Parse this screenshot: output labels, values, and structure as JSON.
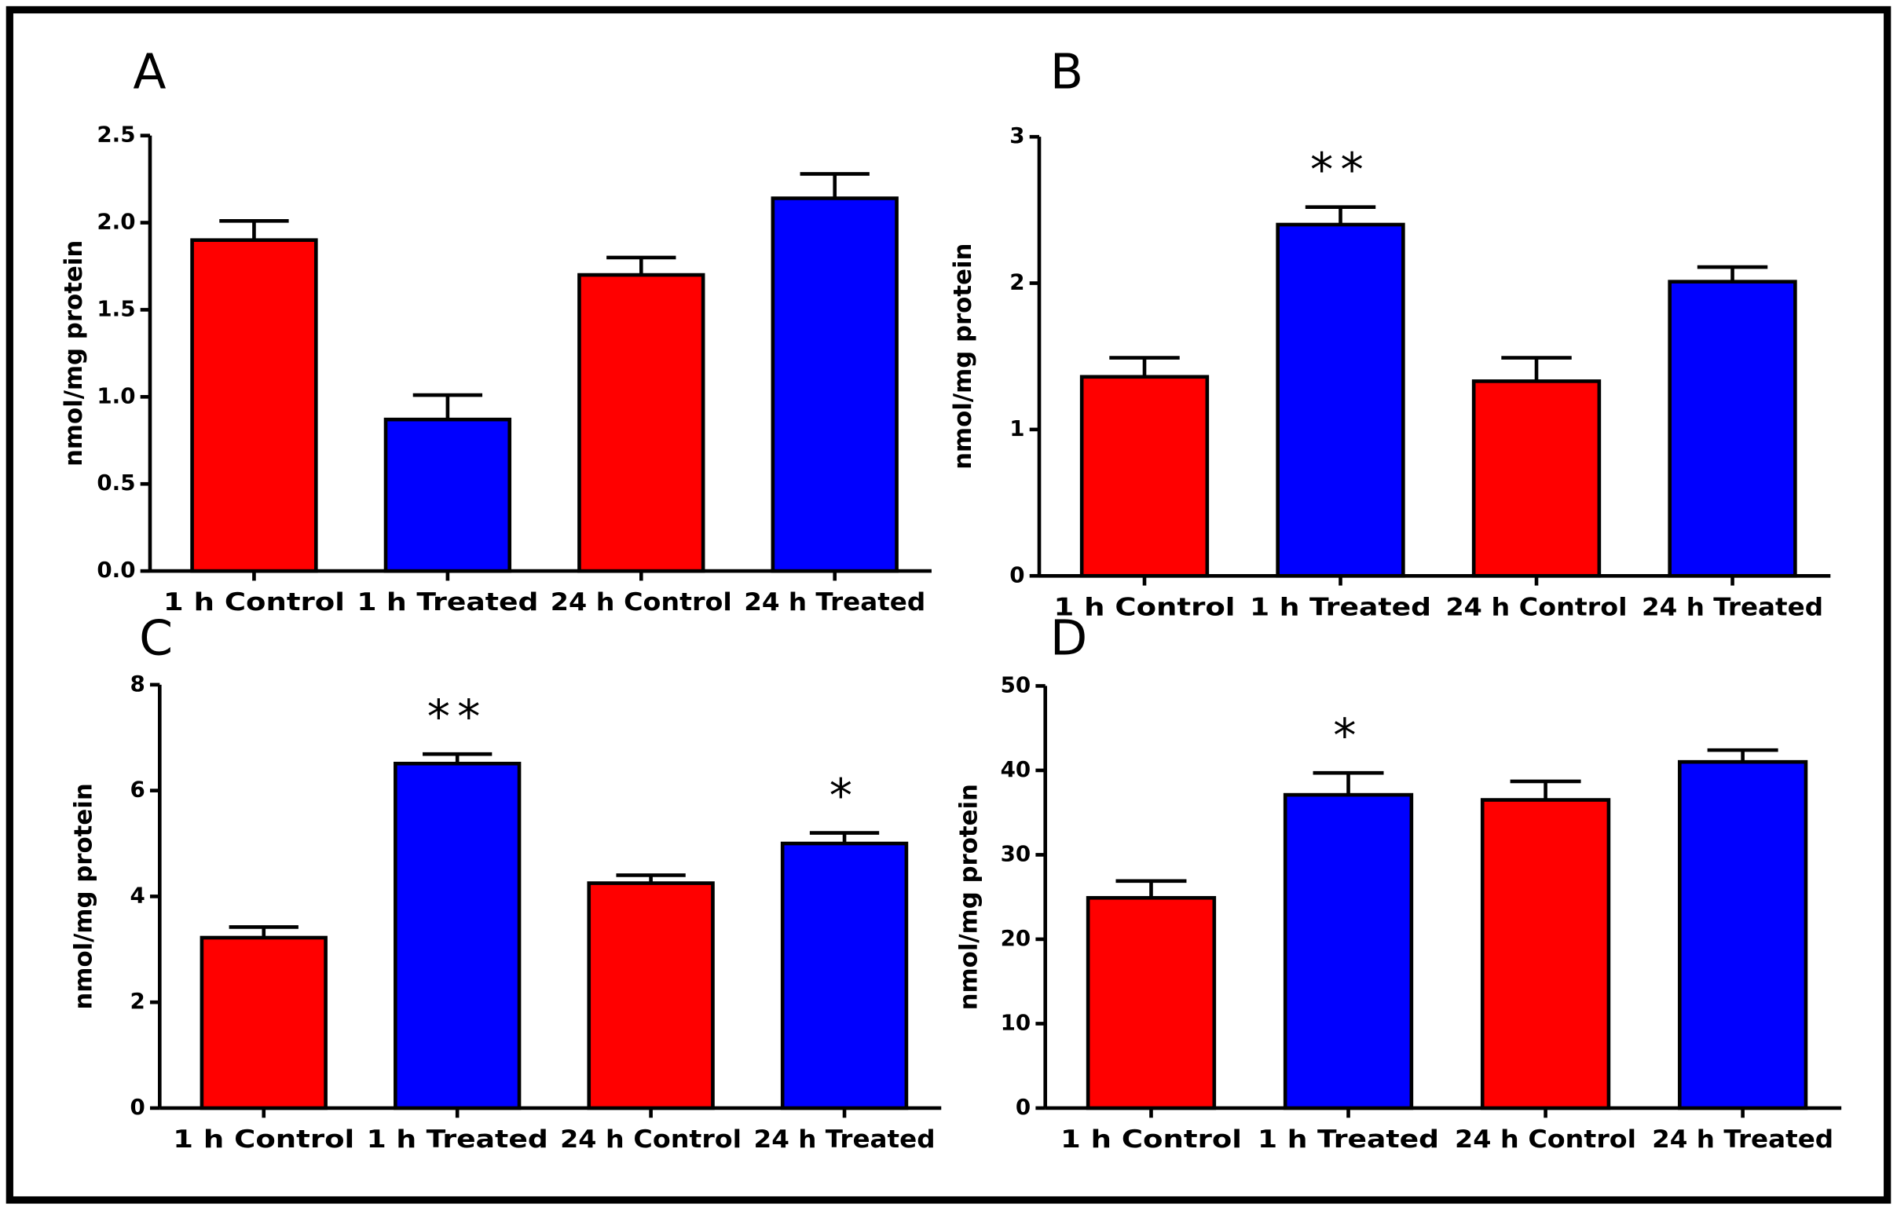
{
  "chart_data": [
    {
      "type": "bar",
      "title": "A",
      "y_label": "nmol/mg protein",
      "categories": [
        "1 h Control",
        "1 h Treated",
        "24 h Control",
        "24 h Treated"
      ],
      "values": [
        1.9,
        0.87,
        1.7,
        2.14
      ],
      "errors": [
        0.11,
        0.14,
        0.1,
        0.14
      ],
      "colors": [
        "#ff0000",
        "#0000ff",
        "#ff0000",
        "#0000ff"
      ],
      "annotations": [
        null,
        null,
        null,
        null
      ],
      "ylim": [
        0,
        2.5
      ],
      "yticks": [
        {
          "value": 0,
          "label": "0.0"
        },
        0.5,
        {
          "value": 1,
          "label": "1.0"
        },
        1.5,
        {
          "value": 2,
          "label": "2.0"
        },
        2.5
      ]
    },
    {
      "type": "bar",
      "title": "B",
      "y_label": "nmol/mg protein",
      "categories": [
        "1 h Control",
        "1 h Treated",
        "24 h Control",
        "24 h Treated"
      ],
      "values": [
        1.36,
        2.4,
        1.33,
        2.01
      ],
      "errors": [
        0.13,
        0.12,
        0.16,
        0.1
      ],
      "colors": [
        "#ff0000",
        "#0000ff",
        "#ff0000",
        "#0000ff"
      ],
      "annotations": [
        null,
        "**",
        null,
        null
      ],
      "ylim": [
        0,
        3
      ],
      "yticks": [
        0,
        1,
        2,
        3
      ]
    },
    {
      "type": "bar",
      "title": "C",
      "y_label": "nmol/mg protein",
      "categories": [
        "1 h Control",
        "1 h Treated",
        "24 h Control",
        "24 h Treated"
      ],
      "values": [
        3.22,
        6.51,
        4.25,
        5.0
      ],
      "errors": [
        0.2,
        0.18,
        0.15,
        0.2
      ],
      "colors": [
        "#ff0000",
        "#0000ff",
        "#ff0000",
        "#0000ff"
      ],
      "annotations": [
        null,
        "**",
        null,
        "*"
      ],
      "ylim": [
        0,
        8
      ],
      "yticks": [
        0,
        2,
        4,
        6,
        8
      ]
    },
    {
      "type": "bar",
      "title": "D",
      "y_label": "nmol/mg protein",
      "categories": [
        "1 h Control",
        "1 h Treated",
        "24 h Control",
        "24 h Treated"
      ],
      "values": [
        24.9,
        37.1,
        36.5,
        41.0
      ],
      "errors": [
        2.0,
        2.6,
        2.2,
        1.4
      ],
      "colors": [
        "#ff0000",
        "#0000ff",
        "#ff0000",
        "#0000ff"
      ],
      "annotations": [
        null,
        "*",
        null,
        null
      ],
      "ylim": [
        0,
        50
      ],
      "yticks": [
        0,
        10,
        20,
        30,
        40,
        50
      ]
    }
  ]
}
